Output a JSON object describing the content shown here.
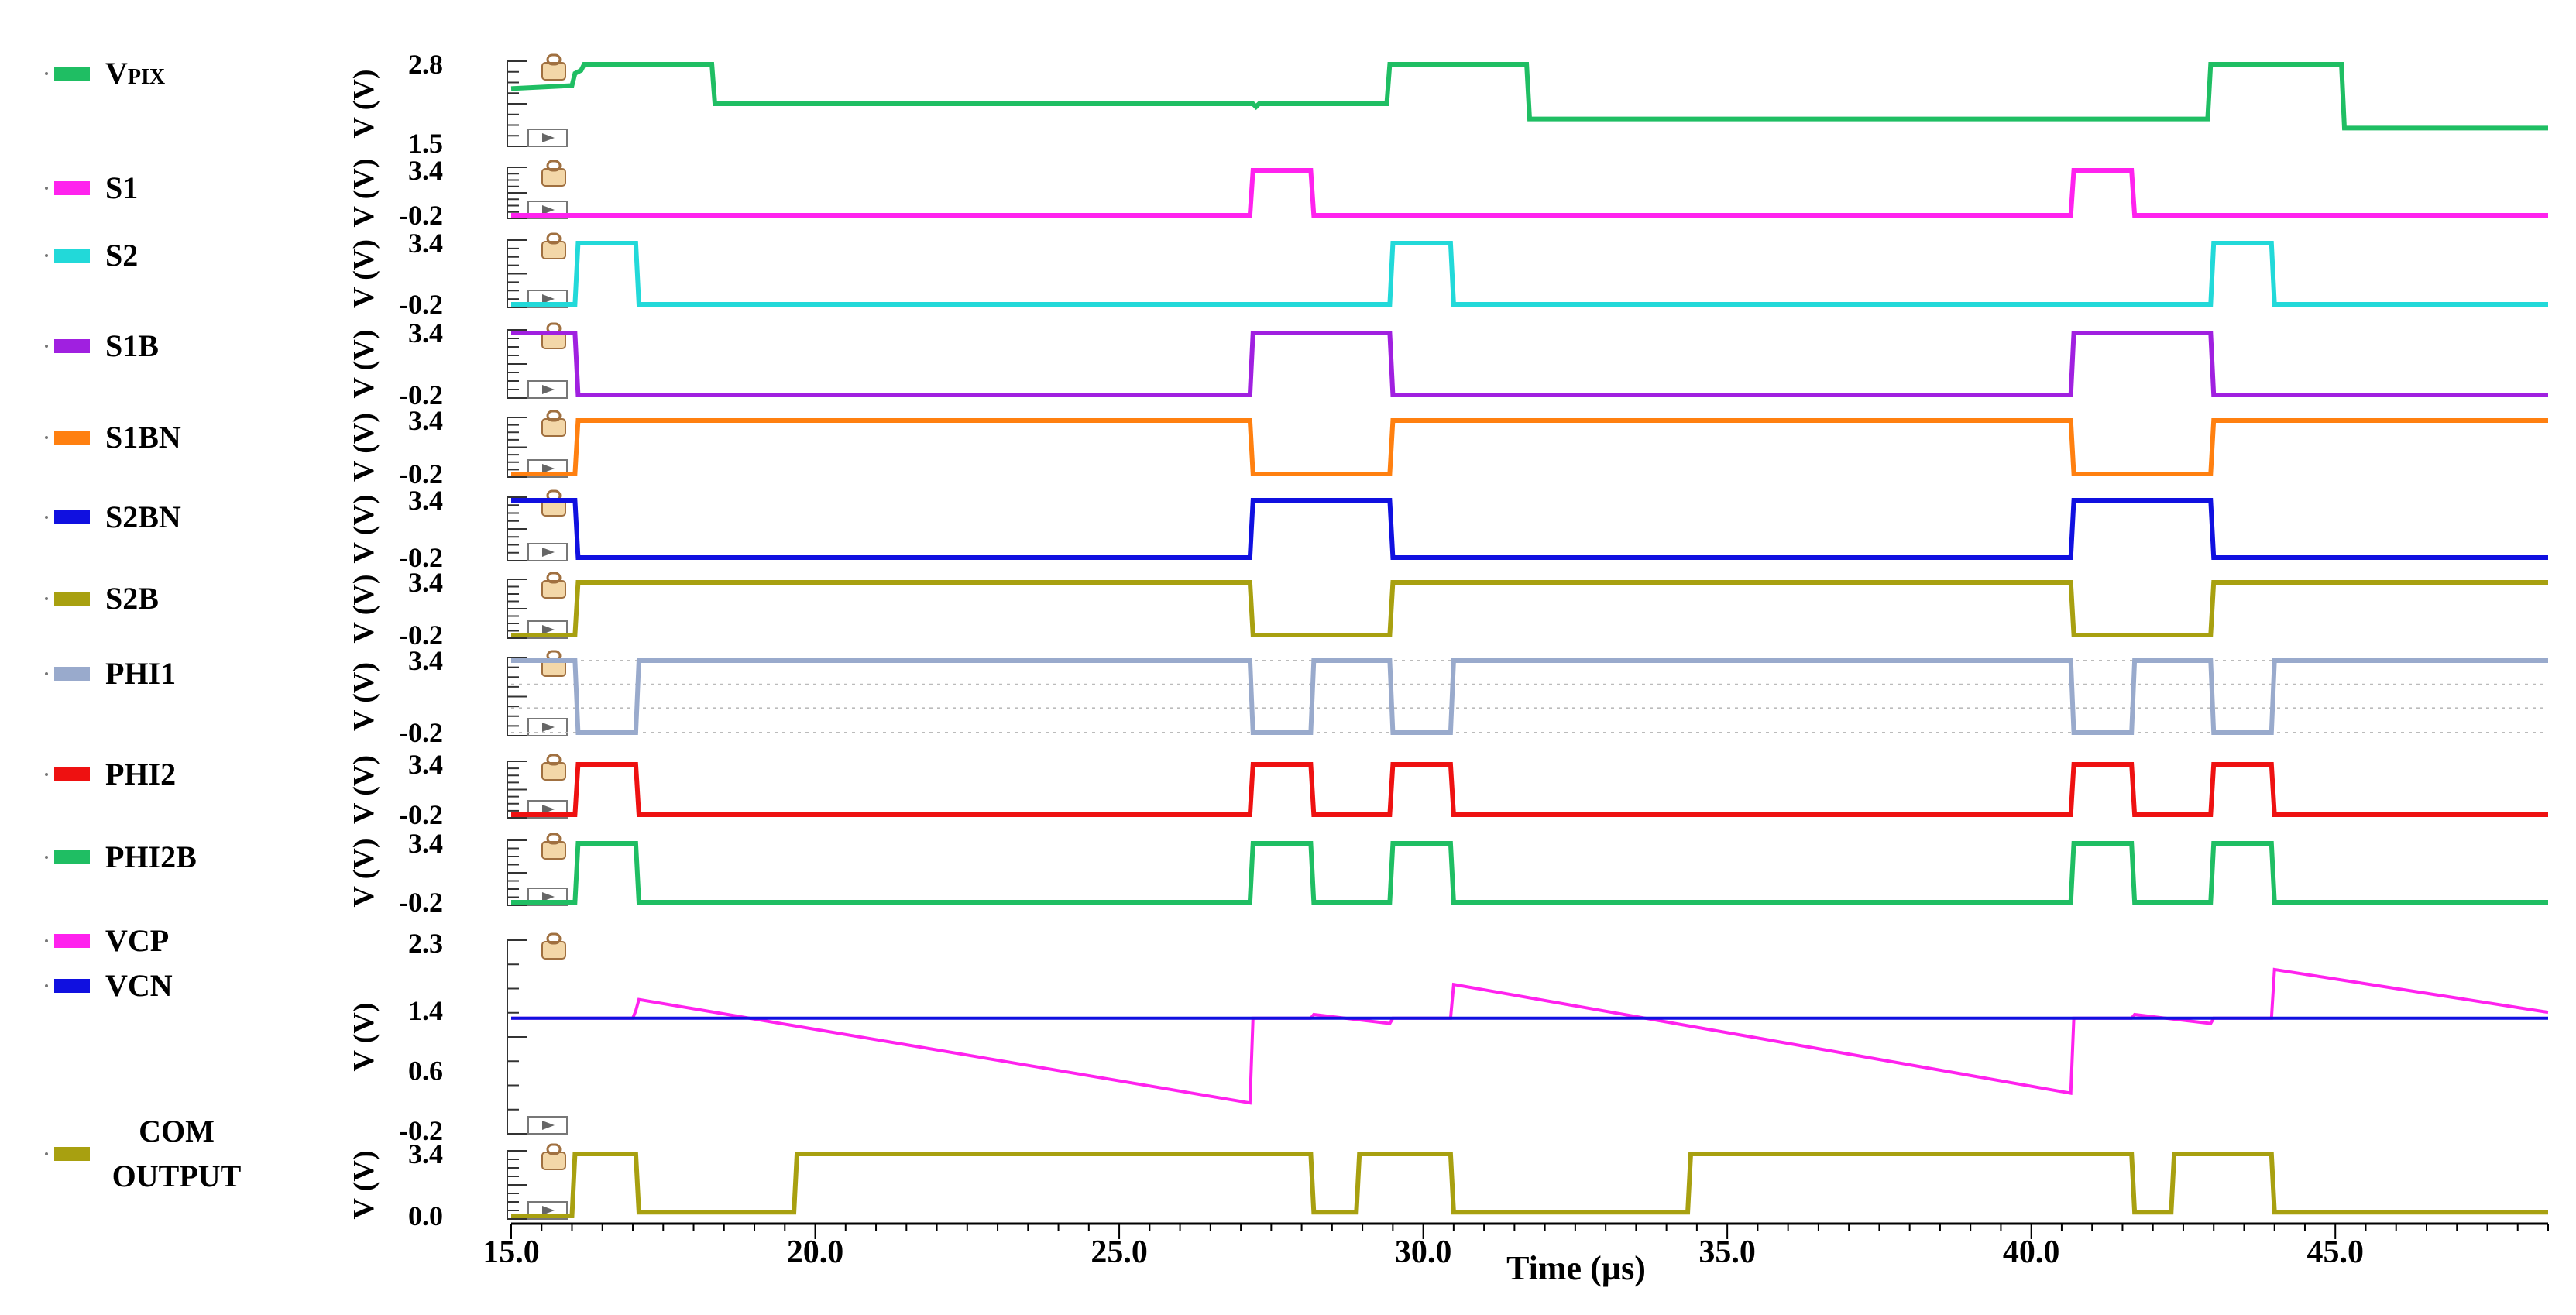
{
  "chart_data": {
    "type": "line",
    "title": "",
    "xlabel": "Time (µs)",
    "xlim": [
      15.0,
      48.5
    ],
    "x_ticks": [
      "15.0",
      "20.0",
      "25.0",
      "30.0",
      "35.0",
      "40.0",
      "45.0"
    ],
    "panels": [
      {
        "ylabel": "V (V)",
        "ylim": [
          1.5,
          2.8
        ],
        "y_ticks": [
          "2.8",
          "1.5"
        ],
        "series": [
          {
            "name": "V",
            "name_sub": "PIX",
            "color": "#1fbe63",
            "x": [
              15.0,
              16.0,
              16.05,
              16.15,
              16.2,
              18.3,
              18.35,
              27.2,
              27.25,
              27.3,
              29.4,
              29.45,
              31.7,
              31.75,
              40.7,
              40.75,
              42.9,
              42.95,
              45.1,
              45.15,
              48.5
            ],
            "y": [
              2.4,
              2.45,
              2.65,
              2.7,
              2.8,
              2.8,
              2.15,
              2.15,
              2.1,
              2.15,
              2.15,
              2.8,
              2.8,
              1.9,
              1.9,
              1.9,
              1.9,
              2.8,
              2.8,
              1.75,
              1.75
            ]
          }
        ]
      },
      {
        "ylabel": "V (V)",
        "ylim": [
          -0.2,
          3.4
        ],
        "y_ticks": [
          "3.4",
          "-0.2"
        ],
        "series": [
          {
            "name": "S1",
            "color": "#ff22ee",
            "x": [
              15.0,
              27.15,
              27.2,
              28.15,
              28.2,
              40.65,
              40.7,
              41.65,
              41.7,
              48.5
            ],
            "y": [
              -0.2,
              -0.2,
              3.4,
              3.4,
              -0.2,
              -0.2,
              3.4,
              3.4,
              -0.2,
              -0.2
            ]
          }
        ]
      },
      {
        "ylabel": "V (V)",
        "ylim": [
          -0.2,
          3.4
        ],
        "y_ticks": [
          "3.4",
          "-0.2"
        ],
        "series": [
          {
            "name": "S2",
            "color": "#22d9d9",
            "x": [
              15.0,
              16.05,
              16.1,
              17.05,
              17.1,
              29.45,
              29.5,
              30.45,
              30.5,
              42.95,
              43.0,
              43.95,
              44.0,
              48.5
            ],
            "y": [
              -0.2,
              -0.2,
              3.4,
              3.4,
              -0.2,
              -0.2,
              3.4,
              3.4,
              -0.2,
              -0.2,
              3.4,
              3.4,
              -0.2,
              -0.2
            ]
          }
        ]
      },
      {
        "ylabel": "V (V)",
        "ylim": [
          -0.2,
          3.4
        ],
        "y_ticks": [
          "3.4",
          "-0.2"
        ],
        "series": [
          {
            "name": "S1B",
            "color": "#a020e0",
            "x": [
              15.0,
              16.05,
              16.1,
              27.15,
              27.2,
              29.45,
              29.5,
              40.65,
              40.7,
              42.95,
              43.0,
              48.5
            ],
            "y": [
              3.4,
              3.4,
              -0.2,
              -0.2,
              3.4,
              3.4,
              -0.2,
              -0.2,
              3.4,
              3.4,
              -0.2,
              -0.2
            ]
          }
        ]
      },
      {
        "ylabel": "V (V)",
        "ylim": [
          -0.2,
          3.4
        ],
        "y_ticks": [
          "3.4",
          "-0.2"
        ],
        "series": [
          {
            "name": "S1BN",
            "color": "#ff8010",
            "x": [
              15.0,
              16.05,
              16.1,
              27.15,
              27.2,
              29.45,
              29.5,
              40.65,
              40.7,
              42.95,
              43.0,
              48.5
            ],
            "y": [
              -0.2,
              -0.2,
              3.4,
              3.4,
              -0.2,
              -0.2,
              3.4,
              3.4,
              -0.2,
              -0.2,
              3.4,
              3.4
            ]
          }
        ]
      },
      {
        "ylabel": "V (V)",
        "ylim": [
          -0.2,
          3.4
        ],
        "y_ticks": [
          "3.4",
          "-0.2"
        ],
        "series": [
          {
            "name": "S2BN",
            "color": "#1010e0",
            "x": [
              15.0,
              16.05,
              16.1,
              27.15,
              27.2,
              29.45,
              29.5,
              40.65,
              40.7,
              42.95,
              43.0,
              48.5
            ],
            "y": [
              3.4,
              3.4,
              -0.2,
              -0.2,
              3.4,
              3.4,
              -0.2,
              -0.2,
              3.4,
              3.4,
              -0.2,
              -0.2
            ]
          }
        ]
      },
      {
        "ylabel": "V (V)",
        "ylim": [
          -0.2,
          3.4
        ],
        "y_ticks": [
          "3.4",
          "-0.2"
        ],
        "series": [
          {
            "name": "S2B",
            "color": "#a8a010",
            "x": [
              15.0,
              16.05,
              16.1,
              27.15,
              27.2,
              29.45,
              29.5,
              40.65,
              40.7,
              42.95,
              43.0,
              48.5
            ],
            "y": [
              -0.2,
              -0.2,
              3.4,
              3.4,
              -0.2,
              -0.2,
              3.4,
              3.4,
              -0.2,
              -0.2,
              3.4,
              3.4
            ]
          }
        ]
      },
      {
        "ylabel": "V (V)",
        "ylim": [
          -0.2,
          3.4
        ],
        "y_ticks": [
          "3.4",
          "-0.2"
        ],
        "series": [
          {
            "name": "PHI1",
            "color": "#99aacc",
            "x": [
              15.0,
              16.05,
              16.1,
              17.05,
              17.1,
              27.15,
              27.2,
              28.15,
              28.2,
              29.45,
              29.5,
              30.45,
              30.5,
              40.65,
              40.7,
              41.65,
              41.7,
              42.95,
              43.0,
              43.95,
              44.0,
              48.5
            ],
            "y": [
              3.4,
              3.4,
              -0.2,
              -0.2,
              3.4,
              3.4,
              -0.2,
              -0.2,
              3.4,
              3.4,
              -0.2,
              -0.2,
              3.4,
              3.4,
              -0.2,
              -0.2,
              3.4,
              3.4,
              -0.2,
              -0.2,
              3.4,
              3.4
            ]
          }
        ]
      },
      {
        "ylabel": "V (V)",
        "ylim": [
          -0.2,
          3.4
        ],
        "y_ticks": [
          "3.4",
          "-0.2"
        ],
        "series": [
          {
            "name": "PHI2",
            "color": "#ee1111",
            "x": [
              15.0,
              16.05,
              16.1,
              17.05,
              17.1,
              27.15,
              27.2,
              28.15,
              28.2,
              29.45,
              29.5,
              30.45,
              30.5,
              40.65,
              40.7,
              41.65,
              41.7,
              42.95,
              43.0,
              43.95,
              44.0,
              48.5
            ],
            "y": [
              -0.2,
              -0.2,
              3.4,
              3.4,
              -0.2,
              -0.2,
              3.4,
              3.4,
              -0.2,
              -0.2,
              3.4,
              3.4,
              -0.2,
              -0.2,
              3.4,
              3.4,
              -0.2,
              -0.2,
              3.4,
              3.4,
              -0.2,
              -0.2
            ]
          }
        ]
      },
      {
        "ylabel": "V (V)",
        "ylim": [
          -0.2,
          3.4
        ],
        "y_ticks": [
          "3.4",
          "-0.2"
        ],
        "series": [
          {
            "name": "PHI2B",
            "color": "#1fbe63",
            "x": [
              15.0,
              16.05,
              16.1,
              17.05,
              17.1,
              27.15,
              27.2,
              28.15,
              28.2,
              29.45,
              29.5,
              30.45,
              30.5,
              40.65,
              40.7,
              41.65,
              41.7,
              42.95,
              43.0,
              43.95,
              44.0,
              48.5
            ],
            "y": [
              -0.2,
              -0.2,
              3.4,
              3.4,
              -0.2,
              -0.2,
              3.4,
              3.4,
              -0.2,
              -0.2,
              3.4,
              3.4,
              -0.2,
              -0.2,
              3.4,
              3.4,
              -0.2,
              -0.2,
              3.4,
              3.4,
              -0.2,
              -0.2
            ]
          }
        ]
      },
      {
        "ylabel": "V (V)",
        "ylim": [
          -0.2,
          2.3
        ],
        "y_ticks": [
          "2.3",
          "1.4",
          "0.6",
          "-0.2"
        ],
        "series": [
          {
            "name": "VCP",
            "color": "#ff22ee",
            "x": [
              15.0,
              17.0,
              17.05,
              17.1,
              27.15,
              27.2,
              28.15,
              28.2,
              29.45,
              29.5,
              30.45,
              30.5,
              40.65,
              40.7,
              41.65,
              41.7,
              42.95,
              43.0,
              43.95,
              44.0,
              48.5
            ],
            "y": [
              1.3,
              1.3,
              1.4,
              1.55,
              0.17,
              1.3,
              1.3,
              1.35,
              1.23,
              1.3,
              1.3,
              1.75,
              0.3,
              1.3,
              1.3,
              1.35,
              1.23,
              1.3,
              1.3,
              1.95,
              1.38
            ]
          },
          {
            "name": "VCN",
            "color": "#1010e0",
            "x": [
              15.0,
              48.5
            ],
            "y": [
              1.3,
              1.3
            ]
          }
        ]
      },
      {
        "ylabel": "V (V)",
        "ylim": [
          0.0,
          3.4
        ],
        "y_ticks": [
          "3.4",
          "0.0"
        ],
        "series": [
          {
            "name": "COM OUTPUT",
            "color": "#a8a010",
            "x": [
              15.0,
              16.0,
              16.05,
              17.05,
              17.1,
              19.65,
              19.7,
              28.15,
              28.2,
              28.9,
              28.95,
              30.45,
              30.5,
              34.35,
              34.4,
              41.65,
              41.7,
              42.3,
              42.35,
              43.95,
              44.0,
              48.5
            ],
            "y": [
              0.0,
              0.0,
              3.4,
              3.4,
              0.2,
              0.2,
              3.4,
              3.4,
              0.2,
              0.2,
              3.4,
              3.4,
              0.2,
              0.2,
              3.4,
              3.4,
              0.2,
              0.2,
              3.4,
              3.4,
              0.2,
              0.2
            ]
          }
        ]
      }
    ]
  }
}
